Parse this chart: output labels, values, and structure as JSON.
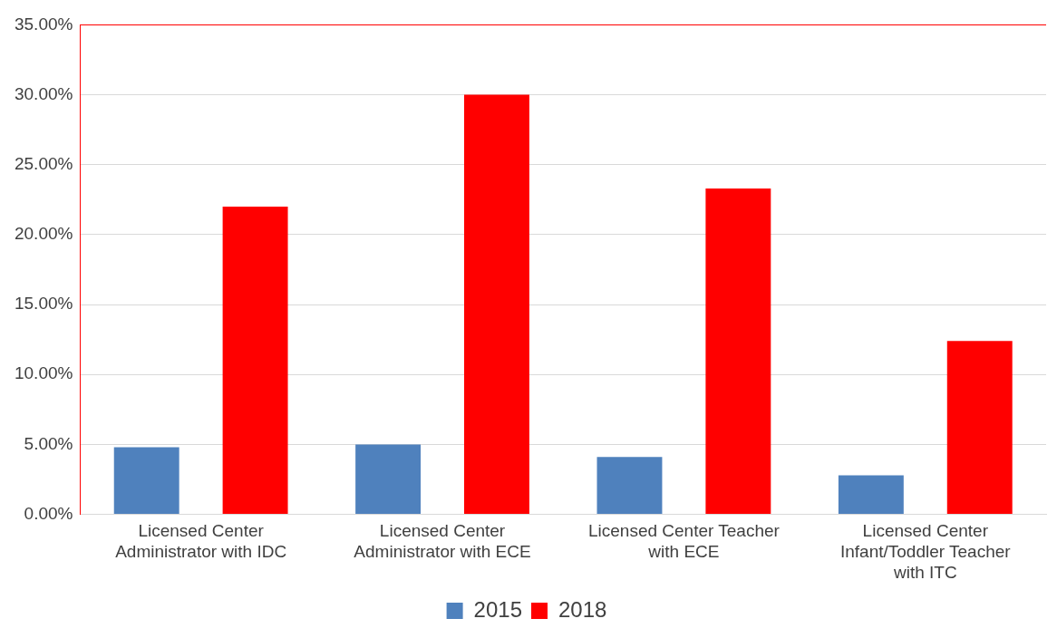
{
  "chart_data": {
    "type": "bar",
    "categories": [
      "Licensed Center Administrator with IDC",
      "Licensed Center Administrator with ECE",
      "Licensed Center Teacher with ECE",
      "Licensed Center Infant/Toddler Teacher with ITC"
    ],
    "series": [
      {
        "name": "2015",
        "color": "#4f81bd",
        "values": [
          4.8,
          5.0,
          4.1,
          2.8
        ]
      },
      {
        "name": "2018",
        "color": "#ff0000",
        "values": [
          22.0,
          30.0,
          23.3,
          12.4
        ]
      }
    ],
    "ylim": [
      0,
      35
    ],
    "yticks": [
      {
        "value": 0,
        "label": "0.00%"
      },
      {
        "value": 5,
        "label": "5.00%"
      },
      {
        "value": 10,
        "label": "10.00%"
      },
      {
        "value": 15,
        "label": "15.00%"
      },
      {
        "value": 20,
        "label": "20.00%"
      },
      {
        "value": 25,
        "label": "25.00%"
      },
      {
        "value": 30,
        "label": "30.00%"
      },
      {
        "value": 35,
        "label": "35.00%"
      }
    ],
    "grid": "y",
    "legend": "bottom"
  }
}
